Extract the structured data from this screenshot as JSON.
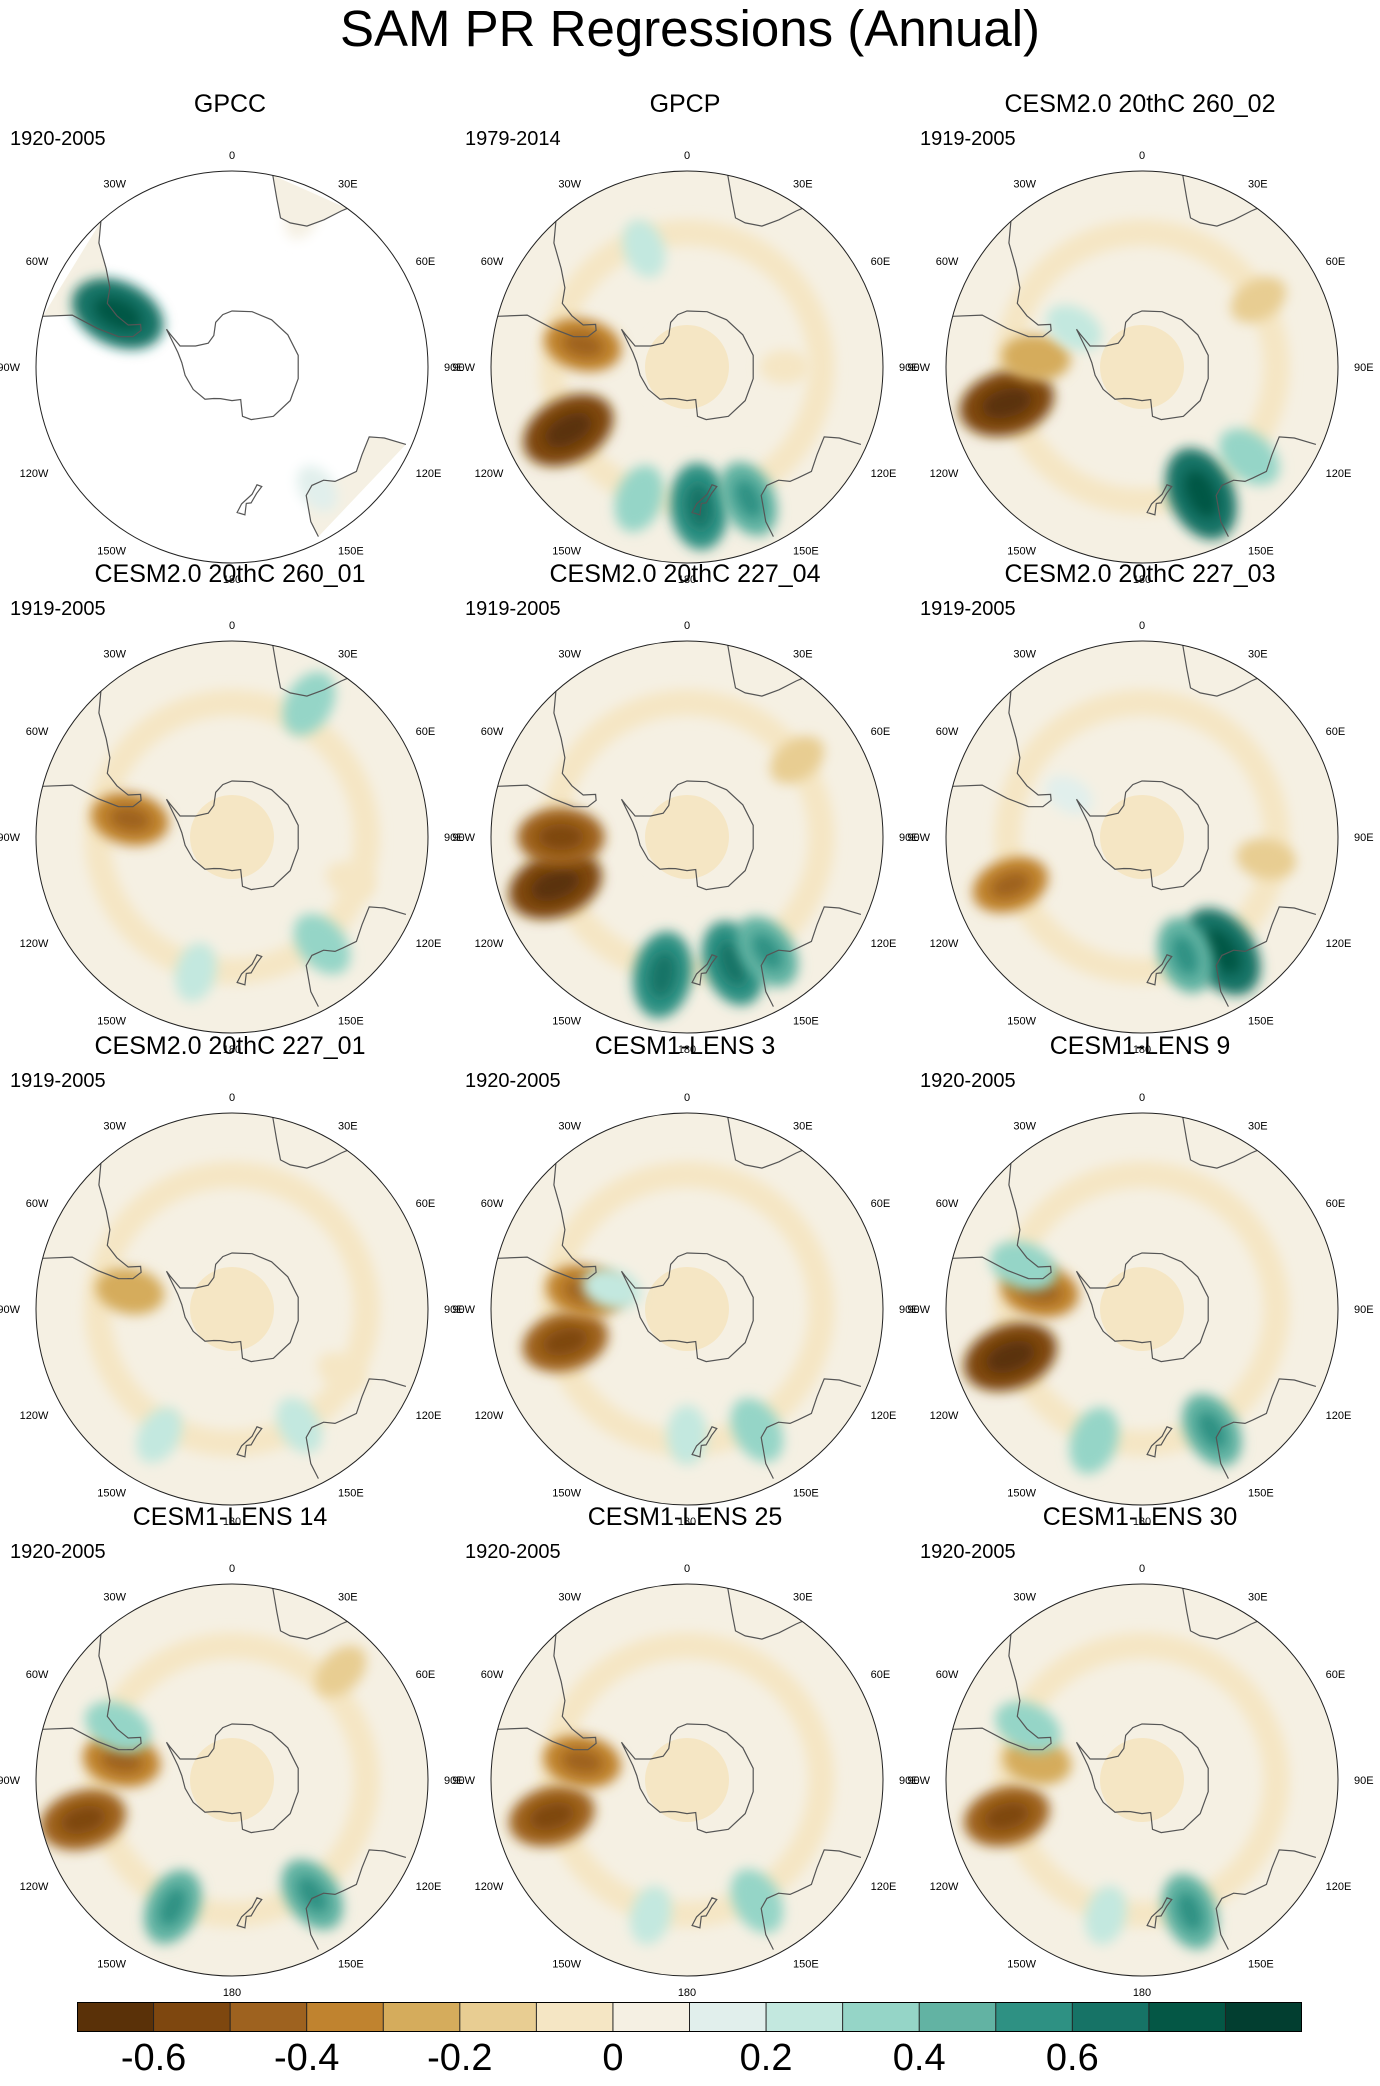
{
  "title": "SAM PR Regressions (Annual)",
  "longitude_labels": [
    "0",
    "30E",
    "60E",
    "90E",
    "120E",
    "150E",
    "180",
    "150W",
    "120W",
    "90W",
    "60W",
    "30W"
  ],
  "panels": [
    {
      "title": "GPCC",
      "period": "1920-2005",
      "coverage": "land-only",
      "anomalies": [
        {
          "lon": -65,
          "lat": -45,
          "value": 0.6
        },
        {
          "lon": 145,
          "lat": -37,
          "value": 0.1
        },
        {
          "lon": 25,
          "lat": -31,
          "value": 0.05
        }
      ]
    },
    {
      "title": "GPCP",
      "period": "1979-2014",
      "coverage": "full",
      "anomalies": [
        {
          "lon": -118,
          "lat": -42,
          "value": -0.6
        },
        {
          "lon": -78,
          "lat": -52,
          "value": -0.4
        },
        {
          "lon": 175,
          "lat": -40,
          "value": 0.5
        },
        {
          "lon": 155,
          "lat": -38,
          "value": 0.4
        },
        {
          "lon": -160,
          "lat": -40,
          "value": 0.3
        },
        {
          "lon": -20,
          "lat": -45,
          "value": 0.2
        },
        {
          "lon": 90,
          "lat": -55,
          "value": -0.1
        }
      ]
    },
    {
      "title": "CESM2.0 20thC 260_02",
      "period": "1919-2005",
      "coverage": "full",
      "anomalies": [
        {
          "lon": -105,
          "lat": -40,
          "value": -0.6
        },
        {
          "lon": -85,
          "lat": -52,
          "value": -0.3
        },
        {
          "lon": 155,
          "lat": -40,
          "value": 0.6
        },
        {
          "lon": 130,
          "lat": -40,
          "value": 0.3
        },
        {
          "lon": 60,
          "lat": -42,
          "value": -0.2
        },
        {
          "lon": -60,
          "lat": -62,
          "value": 0.2
        }
      ]
    },
    {
      "title": "CESM2.0 20thC 260_01",
      "period": "1919-2005",
      "coverage": "full",
      "anomalies": [
        {
          "lon": -80,
          "lat": -53,
          "value": -0.4
        },
        {
          "lon": 30,
          "lat": -35,
          "value": 0.3
        },
        {
          "lon": 140,
          "lat": -40,
          "value": 0.3
        },
        {
          "lon": 110,
          "lat": -45,
          "value": -0.1
        },
        {
          "lon": -165,
          "lat": -40,
          "value": 0.2
        }
      ]
    },
    {
      "title": "CESM2.0 20thC 227_04",
      "period": "1919-2005",
      "coverage": "full",
      "anomalies": [
        {
          "lon": -110,
          "lat": -40,
          "value": -0.6
        },
        {
          "lon": -90,
          "lat": -45,
          "value": -0.5
        },
        {
          "lon": 160,
          "lat": -42,
          "value": 0.5
        },
        {
          "lon": -170,
          "lat": -40,
          "value": 0.5
        },
        {
          "lon": 145,
          "lat": -40,
          "value": 0.4
        },
        {
          "lon": 55,
          "lat": -42,
          "value": -0.2
        }
      ]
    },
    {
      "title": "CESM2.0 20thC 227_03",
      "period": "1919-2005",
      "coverage": "full",
      "anomalies": [
        {
          "lon": -110,
          "lat": -40,
          "value": -0.4
        },
        {
          "lon": 145,
          "lat": -40,
          "value": 0.6
        },
        {
          "lon": 160,
          "lat": -45,
          "value": 0.4
        },
        {
          "lon": 100,
          "lat": -45,
          "value": -0.2
        },
        {
          "lon": -60,
          "lat": -60,
          "value": 0.1
        }
      ]
    },
    {
      "title": "CESM2.0 20thC 227_01",
      "period": "1919-2005",
      "coverage": "full",
      "anomalies": [
        {
          "lon": -80,
          "lat": -53,
          "value": -0.3
        },
        {
          "lon": 150,
          "lat": -42,
          "value": 0.2
        },
        {
          "lon": -150,
          "lat": -38,
          "value": 0.2
        },
        {
          "lon": 120,
          "lat": -45,
          "value": -0.1
        }
      ]
    },
    {
      "title": "CESM1-LENS 3",
      "period": "1920-2005",
      "coverage": "full",
      "anomalies": [
        {
          "lon": -105,
          "lat": -45,
          "value": -0.5
        },
        {
          "lon": -80,
          "lat": -53,
          "value": -0.4
        },
        {
          "lon": 150,
          "lat": -40,
          "value": 0.3
        },
        {
          "lon": 180,
          "lat": -45,
          "value": 0.2
        },
        {
          "lon": -75,
          "lat": -62,
          "value": 0.2
        }
      ]
    },
    {
      "title": "CESM1-LENS 9",
      "period": "1920-2005",
      "coverage": "full",
      "anomalies": [
        {
          "lon": -110,
          "lat": -40,
          "value": -0.6
        },
        {
          "lon": -80,
          "lat": -53,
          "value": -0.4
        },
        {
          "lon": 150,
          "lat": -40,
          "value": 0.4
        },
        {
          "lon": -160,
          "lat": -40,
          "value": 0.3
        },
        {
          "lon": -70,
          "lat": -45,
          "value": 0.3
        }
      ]
    },
    {
      "title": "CESM1-LENS 14",
      "period": "1920-2005",
      "coverage": "full",
      "anomalies": [
        {
          "lon": -105,
          "lat": -35,
          "value": -0.5
        },
        {
          "lon": -80,
          "lat": -50,
          "value": -0.4
        },
        {
          "lon": 145,
          "lat": -40,
          "value": 0.4
        },
        {
          "lon": -155,
          "lat": -40,
          "value": 0.4
        },
        {
          "lon": 45,
          "lat": -35,
          "value": -0.2
        },
        {
          "lon": -65,
          "lat": -45,
          "value": 0.3
        }
      ]
    },
    {
      "title": "CESM1-LENS 25",
      "period": "1920-2005",
      "coverage": "full",
      "anomalies": [
        {
          "lon": -105,
          "lat": -40,
          "value": -0.5
        },
        {
          "lon": -80,
          "lat": -52,
          "value": -0.4
        },
        {
          "lon": 150,
          "lat": -40,
          "value": 0.3
        },
        {
          "lon": -165,
          "lat": -40,
          "value": 0.2
        }
      ]
    },
    {
      "title": "CESM1-LENS 30",
      "period": "1920-2005",
      "coverage": "full",
      "anomalies": [
        {
          "lon": -105,
          "lat": -40,
          "value": -0.5
        },
        {
          "lon": -80,
          "lat": -52,
          "value": -0.3
        },
        {
          "lon": 160,
          "lat": -40,
          "value": 0.4
        },
        {
          "lon": -165,
          "lat": -40,
          "value": 0.2
        },
        {
          "lon": -65,
          "lat": -45,
          "value": 0.3
        }
      ]
    }
  ],
  "colorbar": {
    "levels": [
      -0.7,
      -0.6,
      -0.5,
      -0.4,
      -0.3,
      -0.2,
      -0.1,
      0,
      0.1,
      0.2,
      0.3,
      0.4,
      0.5,
      0.6,
      0.7,
      0.8
    ],
    "colors": [
      "#5a3108",
      "#7e470f",
      "#9e621f",
      "#c0832f",
      "#d5ac5c",
      "#e8cd92",
      "#f5e6c4",
      "#f5f0e3",
      "#e1efec",
      "#c3e8df",
      "#95d5c7",
      "#62b3a3",
      "#2e9183",
      "#167366",
      "#045745",
      "#023e30"
    ],
    "tick_labels": [
      "-0.6",
      "-0.4",
      "-0.2",
      "0",
      "0.2",
      "0.4",
      "0.6"
    ],
    "tick_values": [
      -0.6,
      -0.4,
      -0.2,
      0,
      0.2,
      0.4,
      0.6
    ]
  }
}
